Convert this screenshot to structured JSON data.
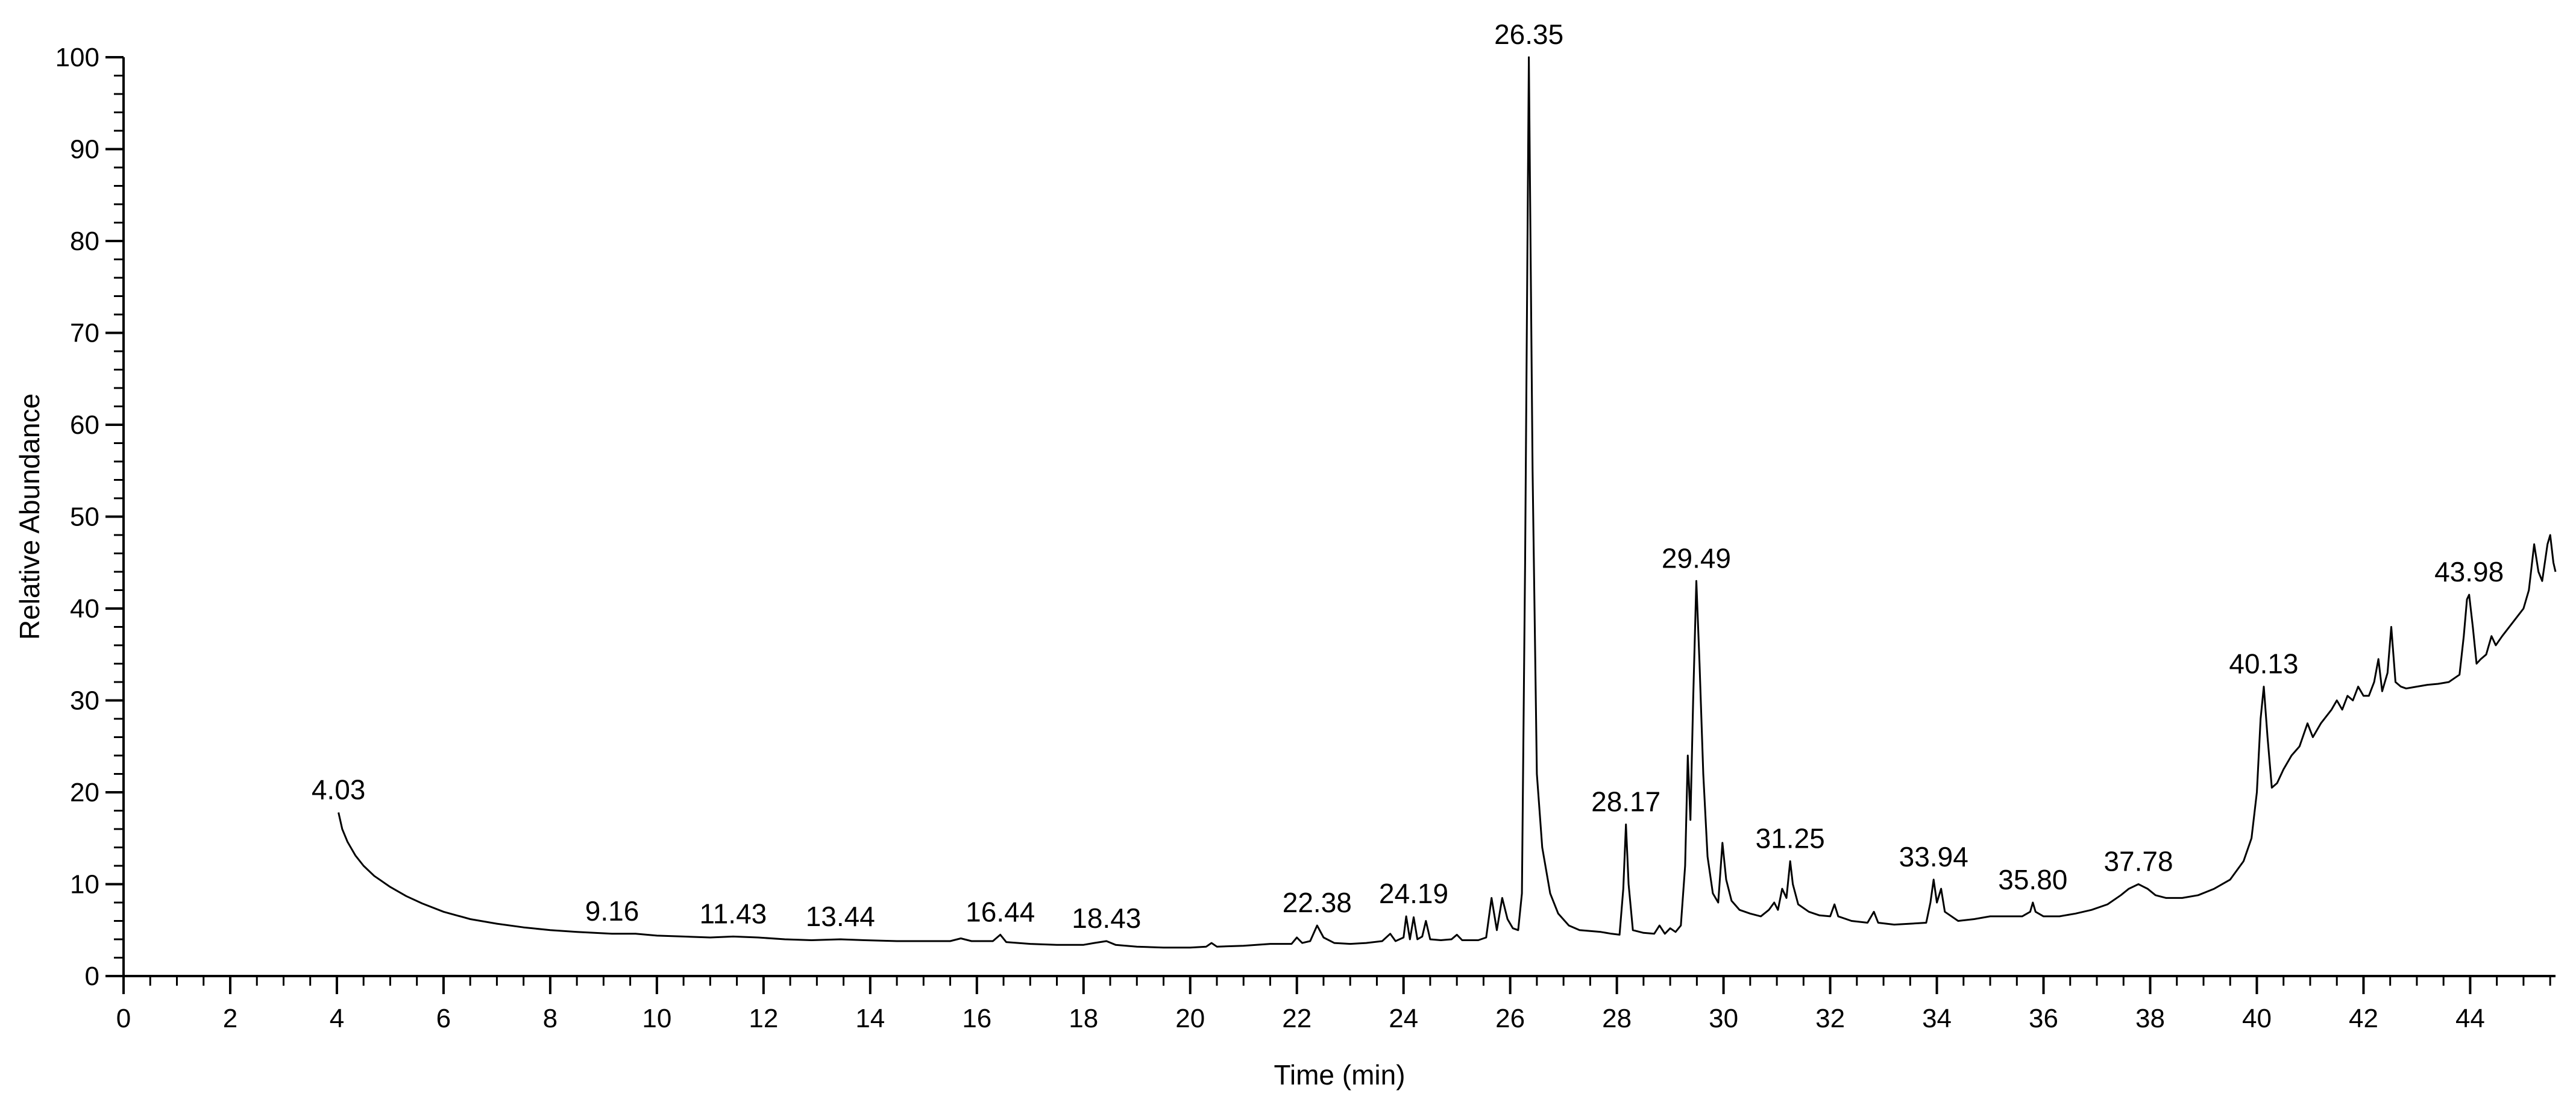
{
  "chart_data": {
    "type": "line",
    "title": "",
    "xlabel": "Time (min)",
    "ylabel": "Relative Abundance",
    "xlim": [
      0,
      45.6
    ],
    "ylim": [
      0,
      100
    ],
    "x_ticks": [
      "0",
      "2",
      "4",
      "6",
      "8",
      "10",
      "12",
      "14",
      "16",
      "18",
      "20",
      "22",
      "24",
      "26",
      "28",
      "30",
      "32",
      "34",
      "36",
      "38",
      "40",
      "42",
      "44"
    ],
    "y_ticks": [
      "0",
      "10",
      "20",
      "30",
      "40",
      "50",
      "60",
      "70",
      "80",
      "90",
      "100"
    ],
    "grid": false,
    "legend": "none",
    "line_color": "#000000",
    "peak_labels": [
      {
        "text": "4.03",
        "x": 4.03,
        "y": 17.8
      },
      {
        "text": "9.16",
        "x": 9.16,
        "y": 4.6
      },
      {
        "text": "11.43",
        "x": 11.43,
        "y": 4.3
      },
      {
        "text": "13.44",
        "x": 13.44,
        "y": 4.0
      },
      {
        "text": "16.44",
        "x": 16.44,
        "y": 4.5
      },
      {
        "text": "18.43",
        "x": 18.43,
        "y": 3.8
      },
      {
        "text": "22.38",
        "x": 22.38,
        "y": 5.5
      },
      {
        "text": "24.19",
        "x": 24.19,
        "y": 6.5
      },
      {
        "text": "26.35",
        "x": 26.35,
        "y": 100
      },
      {
        "text": "28.17",
        "x": 28.17,
        "y": 16.5
      },
      {
        "text": "29.49",
        "x": 29.49,
        "y": 43
      },
      {
        "text": "31.25",
        "x": 31.25,
        "y": 12.5
      },
      {
        "text": "33.94",
        "x": 33.94,
        "y": 10.5
      },
      {
        "text": "35.80",
        "x": 35.8,
        "y": 8.0
      },
      {
        "text": "37.78",
        "x": 37.78,
        "y": 10.0
      },
      {
        "text": "40.13",
        "x": 40.13,
        "y": 31.5
      },
      {
        "text": "43.98",
        "x": 43.98,
        "y": 41.5
      }
    ],
    "series": [
      {
        "points": [
          [
            4.03,
            17.8
          ],
          [
            4.1,
            16.0
          ],
          [
            4.2,
            14.6
          ],
          [
            4.35,
            13.1
          ],
          [
            4.5,
            12.0
          ],
          [
            4.7,
            10.9
          ],
          [
            5.0,
            9.7
          ],
          [
            5.3,
            8.7
          ],
          [
            5.6,
            7.9
          ],
          [
            6.0,
            7.0
          ],
          [
            6.5,
            6.2
          ],
          [
            7.0,
            5.7
          ],
          [
            7.5,
            5.3
          ],
          [
            8.0,
            5.0
          ],
          [
            8.5,
            4.8
          ],
          [
            9.16,
            4.6
          ],
          [
            9.6,
            4.6
          ],
          [
            10.0,
            4.4
          ],
          [
            10.5,
            4.3
          ],
          [
            11.0,
            4.2
          ],
          [
            11.43,
            4.3
          ],
          [
            11.9,
            4.2
          ],
          [
            12.4,
            4.0
          ],
          [
            12.9,
            3.9
          ],
          [
            13.44,
            4.0
          ],
          [
            13.9,
            3.9
          ],
          [
            14.5,
            3.8
          ],
          [
            15.0,
            3.8
          ],
          [
            15.5,
            3.8
          ],
          [
            15.7,
            4.1
          ],
          [
            15.9,
            3.8
          ],
          [
            16.3,
            3.8
          ],
          [
            16.44,
            4.5
          ],
          [
            16.55,
            3.7
          ],
          [
            17.0,
            3.5
          ],
          [
            17.5,
            3.4
          ],
          [
            18.0,
            3.4
          ],
          [
            18.2,
            3.6
          ],
          [
            18.43,
            3.8
          ],
          [
            18.6,
            3.4
          ],
          [
            19.0,
            3.2
          ],
          [
            19.5,
            3.1
          ],
          [
            20.0,
            3.1
          ],
          [
            20.3,
            3.2
          ],
          [
            20.4,
            3.6
          ],
          [
            20.5,
            3.2
          ],
          [
            21.0,
            3.3
          ],
          [
            21.5,
            3.5
          ],
          [
            21.9,
            3.5
          ],
          [
            22.0,
            4.2
          ],
          [
            22.1,
            3.6
          ],
          [
            22.25,
            3.8
          ],
          [
            22.38,
            5.5
          ],
          [
            22.5,
            4.2
          ],
          [
            22.7,
            3.6
          ],
          [
            23.0,
            3.5
          ],
          [
            23.3,
            3.6
          ],
          [
            23.6,
            3.8
          ],
          [
            23.75,
            4.6
          ],
          [
            23.85,
            3.8
          ],
          [
            24.0,
            4.2
          ],
          [
            24.05,
            6.5
          ],
          [
            24.12,
            4.0
          ],
          [
            24.19,
            6.4
          ],
          [
            24.26,
            4.0
          ],
          [
            24.35,
            4.3
          ],
          [
            24.42,
            6.0
          ],
          [
            24.5,
            4.0
          ],
          [
            24.7,
            3.9
          ],
          [
            24.9,
            4.0
          ],
          [
            25.0,
            4.5
          ],
          [
            25.1,
            3.9
          ],
          [
            25.4,
            3.9
          ],
          [
            25.55,
            4.2
          ],
          [
            25.65,
            8.5
          ],
          [
            25.75,
            5.0
          ],
          [
            25.85,
            8.5
          ],
          [
            25.95,
            6.2
          ],
          [
            26.05,
            5.2
          ],
          [
            26.15,
            5.0
          ],
          [
            26.22,
            9.0
          ],
          [
            26.28,
            45.0
          ],
          [
            26.35,
            100
          ],
          [
            26.42,
            55.0
          ],
          [
            26.5,
            22.0
          ],
          [
            26.6,
            14.0
          ],
          [
            26.75,
            9.0
          ],
          [
            26.9,
            6.8
          ],
          [
            27.1,
            5.5
          ],
          [
            27.3,
            5.0
          ],
          [
            27.5,
            4.9
          ],
          [
            27.7,
            4.8
          ],
          [
            27.9,
            4.6
          ],
          [
            28.05,
            4.5
          ],
          [
            28.12,
            9.5
          ],
          [
            28.17,
            16.5
          ],
          [
            28.22,
            10.0
          ],
          [
            28.3,
            5.0
          ],
          [
            28.5,
            4.7
          ],
          [
            28.7,
            4.6
          ],
          [
            28.8,
            5.5
          ],
          [
            28.9,
            4.6
          ],
          [
            29.0,
            5.2
          ],
          [
            29.1,
            4.8
          ],
          [
            29.2,
            5.5
          ],
          [
            29.28,
            12.0
          ],
          [
            29.33,
            24.0
          ],
          [
            29.38,
            17.0
          ],
          [
            29.43,
            30.0
          ],
          [
            29.49,
            43.0
          ],
          [
            29.55,
            34.0
          ],
          [
            29.62,
            22.0
          ],
          [
            29.7,
            13.0
          ],
          [
            29.8,
            9.0
          ],
          [
            29.9,
            8.0
          ],
          [
            29.98,
            14.5
          ],
          [
            30.05,
            10.5
          ],
          [
            30.15,
            8.2
          ],
          [
            30.3,
            7.2
          ],
          [
            30.5,
            6.8
          ],
          [
            30.7,
            6.5
          ],
          [
            30.85,
            7.2
          ],
          [
            30.95,
            8.0
          ],
          [
            31.02,
            7.2
          ],
          [
            31.1,
            9.5
          ],
          [
            31.18,
            8.5
          ],
          [
            31.25,
            12.5
          ],
          [
            31.3,
            10.0
          ],
          [
            31.4,
            7.8
          ],
          [
            31.6,
            7.0
          ],
          [
            31.8,
            6.6
          ],
          [
            32.0,
            6.5
          ],
          [
            32.08,
            7.8
          ],
          [
            32.15,
            6.5
          ],
          [
            32.4,
            6.0
          ],
          [
            32.7,
            5.8
          ],
          [
            32.82,
            7.0
          ],
          [
            32.9,
            5.8
          ],
          [
            33.2,
            5.6
          ],
          [
            33.5,
            5.7
          ],
          [
            33.8,
            5.8
          ],
          [
            33.88,
            8.0
          ],
          [
            33.94,
            10.5
          ],
          [
            34.0,
            8.0
          ],
          [
            34.08,
            9.5
          ],
          [
            34.15,
            7.0
          ],
          [
            34.4,
            6.0
          ],
          [
            34.7,
            6.2
          ],
          [
            35.0,
            6.5
          ],
          [
            35.3,
            6.5
          ],
          [
            35.6,
            6.5
          ],
          [
            35.75,
            7.0
          ],
          [
            35.8,
            8.0
          ],
          [
            35.85,
            7.0
          ],
          [
            36.0,
            6.5
          ],
          [
            36.3,
            6.5
          ],
          [
            36.6,
            6.8
          ],
          [
            36.9,
            7.2
          ],
          [
            37.2,
            7.8
          ],
          [
            37.45,
            8.8
          ],
          [
            37.6,
            9.5
          ],
          [
            37.78,
            10.0
          ],
          [
            37.95,
            9.5
          ],
          [
            38.1,
            8.8
          ],
          [
            38.3,
            8.5
          ],
          [
            38.6,
            8.5
          ],
          [
            38.9,
            8.8
          ],
          [
            39.2,
            9.5
          ],
          [
            39.5,
            10.5
          ],
          [
            39.75,
            12.5
          ],
          [
            39.9,
            15.0
          ],
          [
            40.0,
            20.0
          ],
          [
            40.07,
            28.0
          ],
          [
            40.13,
            31.5
          ],
          [
            40.2,
            26.0
          ],
          [
            40.28,
            20.5
          ],
          [
            40.38,
            21.0
          ],
          [
            40.5,
            22.5
          ],
          [
            40.65,
            24.0
          ],
          [
            40.8,
            25.0
          ],
          [
            40.95,
            27.5
          ],
          [
            41.05,
            26.0
          ],
          [
            41.2,
            27.5
          ],
          [
            41.4,
            29.0
          ],
          [
            41.5,
            30.0
          ],
          [
            41.6,
            29.0
          ],
          [
            41.7,
            30.5
          ],
          [
            41.8,
            30.0
          ],
          [
            41.9,
            31.5
          ],
          [
            42.0,
            30.5
          ],
          [
            42.1,
            30.5
          ],
          [
            42.2,
            32.0
          ],
          [
            42.28,
            34.5
          ],
          [
            42.35,
            31.0
          ],
          [
            42.45,
            33.0
          ],
          [
            42.52,
            38.0
          ],
          [
            42.6,
            32.0
          ],
          [
            42.7,
            31.5
          ],
          [
            42.8,
            31.3
          ],
          [
            43.0,
            31.5
          ],
          [
            43.2,
            31.7
          ],
          [
            43.4,
            31.8
          ],
          [
            43.6,
            32.0
          ],
          [
            43.8,
            32.8
          ],
          [
            43.88,
            37.0
          ],
          [
            43.94,
            41.0
          ],
          [
            43.98,
            41.5
          ],
          [
            44.05,
            38.0
          ],
          [
            44.12,
            34.0
          ],
          [
            44.2,
            34.5
          ],
          [
            44.3,
            35.0
          ],
          [
            44.4,
            37.0
          ],
          [
            44.48,
            36.0
          ],
          [
            44.6,
            37.0
          ],
          [
            44.8,
            38.5
          ],
          [
            45.0,
            40.0
          ],
          [
            45.1,
            42.0
          ],
          [
            45.2,
            47.0
          ],
          [
            45.28,
            44.0
          ],
          [
            45.35,
            43.0
          ],
          [
            45.45,
            47.0
          ],
          [
            45.5,
            48.0
          ],
          [
            45.56,
            45.0
          ],
          [
            45.6,
            44.0
          ]
        ]
      }
    ]
  }
}
